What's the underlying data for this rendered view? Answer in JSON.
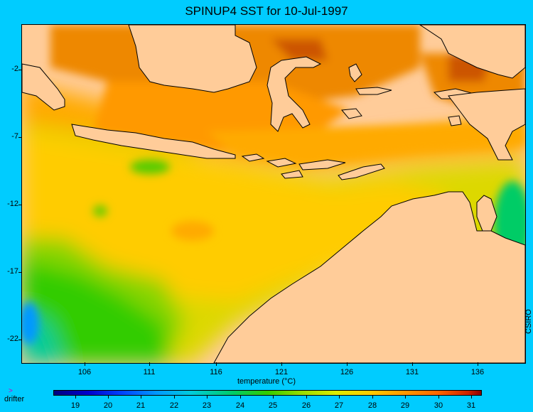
{
  "title": "SPINUP4 SST for 10-Jul-1997",
  "credit": "CSIRO",
  "axis_title": "temperature (°C)",
  "legend": {
    "drifter_label": "drifter",
    "drifter_icon": "arrow-right-icon"
  },
  "lat_ticks": [
    "-2",
    "-7",
    "-12",
    "-17",
    "-22"
  ],
  "lon_ticks": [
    "106",
    "111",
    "116",
    "121",
    "126",
    "131",
    "136"
  ],
  "colorbar_ticks": [
    "19",
    "20",
    "21",
    "22",
    "23",
    "24",
    "25",
    "26",
    "27",
    "28",
    "29",
    "30",
    "31"
  ],
  "colors": {
    "background": "#00ccff",
    "land": "#ffcc99",
    "coastline": "#000000",
    "warm": "#ff8800",
    "mid": "#ffcc00",
    "cool": "#33cc00"
  }
}
